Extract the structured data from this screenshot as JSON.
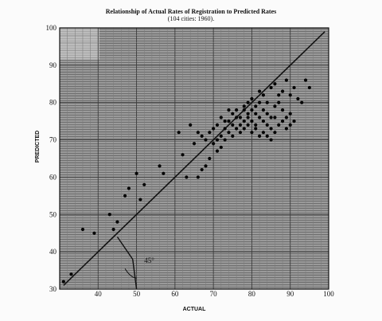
{
  "chart_data": {
    "type": "scatter",
    "title": "Relationship of Actual Rates of Registration to Predicted Rates",
    "subtitle": "(104 cities: 1960).",
    "xlabel": "ACTUAL",
    "ylabel": "PREDICTED",
    "xlim": [
      30,
      100
    ],
    "ylim": [
      30,
      100
    ],
    "x_ticks": [
      40,
      50,
      60,
      70,
      80,
      90,
      100
    ],
    "y_ticks": [
      30,
      40,
      50,
      60,
      70,
      80,
      90,
      100
    ],
    "grid": true,
    "reference_line": "y = x",
    "angle_annotation": "45°",
    "series": [
      {
        "points": [
          [
            31,
            32
          ],
          [
            33,
            34
          ],
          [
            36,
            46
          ],
          [
            39,
            45
          ],
          [
            43,
            50
          ],
          [
            44,
            46
          ],
          [
            45,
            48
          ],
          [
            47,
            55
          ],
          [
            48,
            57
          ],
          [
            50,
            61
          ],
          [
            52,
            58
          ],
          [
            51,
            54
          ],
          [
            56,
            63
          ],
          [
            57,
            61
          ],
          [
            61,
            72
          ],
          [
            62,
            66
          ],
          [
            63,
            60
          ],
          [
            64,
            74
          ],
          [
            65,
            69
          ],
          [
            66,
            72
          ],
          [
            67,
            71
          ],
          [
            68,
            70
          ],
          [
            69,
            72
          ],
          [
            70,
            73
          ],
          [
            71,
            74
          ],
          [
            72,
            76
          ],
          [
            73,
            75
          ],
          [
            74,
            78
          ],
          [
            75,
            77
          ],
          [
            76,
            78
          ],
          [
            77,
            76
          ],
          [
            78,
            79
          ],
          [
            79,
            80
          ],
          [
            80,
            81
          ],
          [
            81,
            77
          ],
          [
            82,
            83
          ],
          [
            83,
            82
          ],
          [
            84,
            80
          ],
          [
            85,
            84
          ],
          [
            86,
            85
          ],
          [
            87,
            82
          ],
          [
            88,
            83
          ],
          [
            89,
            86
          ],
          [
            90,
            82
          ],
          [
            91,
            84
          ],
          [
            92,
            81
          ],
          [
            93,
            80
          ],
          [
            94,
            86
          ],
          [
            95,
            84
          ],
          [
            67,
            62
          ],
          [
            70,
            69
          ],
          [
            71,
            70
          ],
          [
            72,
            71
          ],
          [
            74,
            72
          ],
          [
            75,
            74
          ],
          [
            76,
            73
          ],
          [
            77,
            72
          ],
          [
            78,
            75
          ],
          [
            79,
            77
          ],
          [
            80,
            78
          ],
          [
            81,
            79
          ],
          [
            82,
            80
          ],
          [
            83,
            78
          ],
          [
            84,
            77
          ],
          [
            85,
            76
          ],
          [
            86,
            79
          ],
          [
            87,
            80
          ],
          [
            88,
            78
          ],
          [
            89,
            76
          ],
          [
            90,
            77
          ],
          [
            73,
            73
          ],
          [
            74,
            75
          ],
          [
            76,
            76
          ],
          [
            78,
            78
          ],
          [
            79,
            76
          ],
          [
            80,
            75
          ],
          [
            81,
            74
          ],
          [
            82,
            76
          ],
          [
            83,
            75
          ],
          [
            84,
            74
          ],
          [
            85,
            73
          ],
          [
            86,
            76
          ],
          [
            66,
            60
          ],
          [
            68,
            63
          ],
          [
            69,
            65
          ],
          [
            71,
            67
          ],
          [
            72,
            68
          ],
          [
            73,
            70
          ],
          [
            75,
            71
          ],
          [
            77,
            74
          ],
          [
            78,
            73
          ],
          [
            79,
            74
          ],
          [
            80,
            72
          ],
          [
            81,
            73
          ],
          [
            82,
            71
          ],
          [
            83,
            72
          ],
          [
            84,
            71
          ],
          [
            85,
            70
          ],
          [
            86,
            72
          ],
          [
            87,
            74
          ],
          [
            88,
            75
          ],
          [
            89,
            73
          ],
          [
            90,
            74
          ],
          [
            91,
            75
          ]
        ]
      }
    ]
  }
}
